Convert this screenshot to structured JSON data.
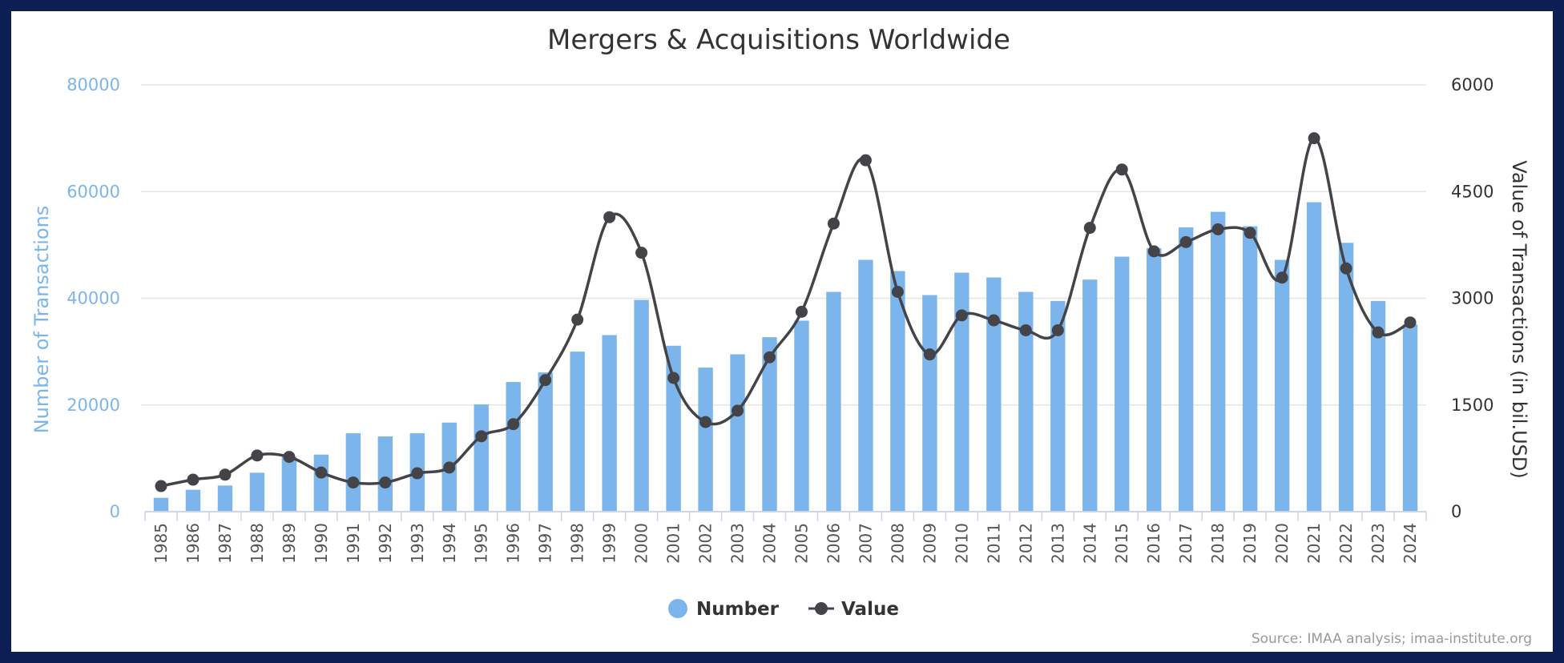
{
  "chart_data": {
    "type": "bar",
    "title": "Mergers & Acquisitions Worldwide",
    "credits": "Source: IMAA analysis; imaa-institute.org",
    "categories": [
      "1985",
      "1986",
      "1987",
      "1988",
      "1989",
      "1990",
      "1991",
      "1992",
      "1993",
      "1994",
      "1995",
      "1996",
      "1997",
      "1998",
      "1999",
      "2000",
      "2001",
      "2002",
      "2003",
      "2004",
      "2005",
      "2006",
      "2007",
      "2008",
      "2009",
      "2010",
      "2011",
      "2012",
      "2013",
      "2014",
      "2015",
      "2016",
      "2017",
      "2018",
      "2019",
      "2020",
      "2021",
      "2022",
      "2023",
      "2024"
    ],
    "y_left": {
      "label": "Number of Transactions",
      "ylim": [
        0,
        80000
      ],
      "ticks": [
        "0",
        "20000",
        "40000",
        "60000",
        "80000"
      ],
      "color": "#7cb5ec"
    },
    "y_right": {
      "label": "Value of Transactions (in bil.USD)",
      "ylim": [
        0,
        6000
      ],
      "ticks": [
        "0",
        "1500",
        "3000",
        "4500",
        "6000"
      ],
      "color": "#333333"
    },
    "grid": true,
    "legend_position": "bottom-center",
    "series": [
      {
        "name": "Number",
        "type": "column",
        "axis": "left",
        "color": "#7cb5ec",
        "values": [
          2600,
          4100,
          4900,
          7300,
          10300,
          10700,
          14700,
          14100,
          14700,
          16700,
          20100,
          24300,
          26100,
          30000,
          33100,
          39700,
          31100,
          27000,
          29500,
          32700,
          35800,
          41200,
          47200,
          45100,
          40600,
          44800,
          43900,
          41200,
          39500,
          43500,
          47800,
          49400,
          53300,
          56200,
          53500,
          47200,
          58000,
          50400,
          39500,
          35100
        ]
      },
      {
        "name": "Value",
        "type": "spline",
        "axis": "right",
        "color": "#434348",
        "values": [
          360,
          450,
          520,
          790,
          770,
          550,
          410,
          410,
          540,
          620,
          1060,
          1230,
          1850,
          2700,
          4140,
          3640,
          1880,
          1260,
          1420,
          2170,
          2810,
          4050,
          4940,
          3090,
          2210,
          2760,
          2690,
          2550,
          2550,
          3990,
          4810,
          3660,
          3790,
          3970,
          3920,
          3290,
          5250,
          3420,
          2520,
          2660
        ]
      }
    ]
  }
}
